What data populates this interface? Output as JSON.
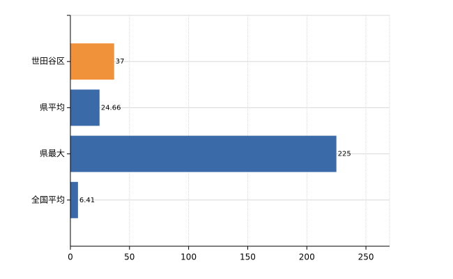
{
  "chart_data": {
    "type": "bar",
    "orientation": "horizontal",
    "categories": [
      "世田谷区",
      "県平均",
      "県最大",
      "全国平均"
    ],
    "values": [
      37,
      24.66,
      225,
      6.41
    ],
    "colors": [
      "#f0923a",
      "#3a6aa8",
      "#3a6aa8",
      "#3a6aa8"
    ],
    "xlim": [
      0,
      270
    ],
    "xticks": [
      0,
      50,
      100,
      150,
      200,
      250
    ],
    "grid": true
  }
}
